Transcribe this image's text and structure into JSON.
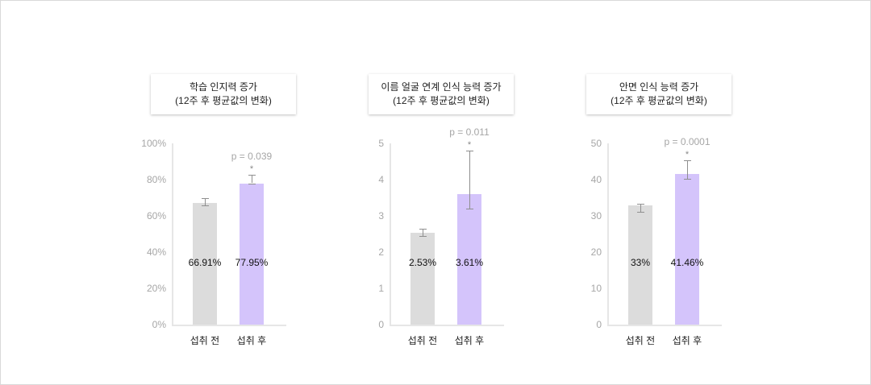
{
  "chart_data": [
    {
      "type": "bar",
      "title": "학습 인지력 증가",
      "subtitle": "(12주 후 평균값의 변화)",
      "categories": [
        "섭취 전",
        "섭취 후"
      ],
      "values": [
        66.91,
        77.95
      ],
      "value_labels": [
        "66.91%",
        "77.95%"
      ],
      "error_bars": [
        [
          65.6,
          70.0
        ],
        [
          78.0,
          82.7
        ]
      ],
      "ylim": [
        0,
        100
      ],
      "yticks": [
        "0%",
        "20%",
        "40%",
        "60%",
        "80%",
        "100%"
      ],
      "annotation": "p = 0.039",
      "significance": "*",
      "colors": [
        "#dcdcdc",
        "#d4c4fb"
      ],
      "grid": false
    },
    {
      "type": "bar",
      "title": "이름 얼굴 연계 인식 능력 증가",
      "subtitle": "(12주 후 평균값의 변화)",
      "categories": [
        "섭취 전",
        "섭취 후"
      ],
      "values": [
        2.53,
        3.61
      ],
      "value_labels": [
        "2.53%",
        "3.61%"
      ],
      "error_bars": [
        [
          2.45,
          2.65
        ],
        [
          3.2,
          4.8
        ]
      ],
      "ylim": [
        0,
        5
      ],
      "yticks": [
        "0",
        "1",
        "2",
        "3",
        "4",
        "5"
      ],
      "annotation": "p = 0.011",
      "significance": "*",
      "colors": [
        "#dcdcdc",
        "#d4c4fb"
      ],
      "grid": false
    },
    {
      "type": "bar",
      "title": "안면 인식 능력 증가",
      "subtitle": "(12주 후 평균값의 변화)",
      "categories": [
        "섭취 전",
        "섭취 후"
      ],
      "values": [
        33,
        41.46
      ],
      "value_labels": [
        "33%",
        "41.46%"
      ],
      "error_bars": [
        [
          31.1,
          33.3
        ],
        [
          40.2,
          45.4
        ]
      ],
      "ylim": [
        0,
        50
      ],
      "yticks": [
        "0",
        "10",
        "20",
        "30",
        "40",
        "50"
      ],
      "annotation": "p = 0.0001",
      "significance": "*",
      "colors": [
        "#dcdcdc",
        "#d4c4fb"
      ],
      "grid": false
    }
  ]
}
